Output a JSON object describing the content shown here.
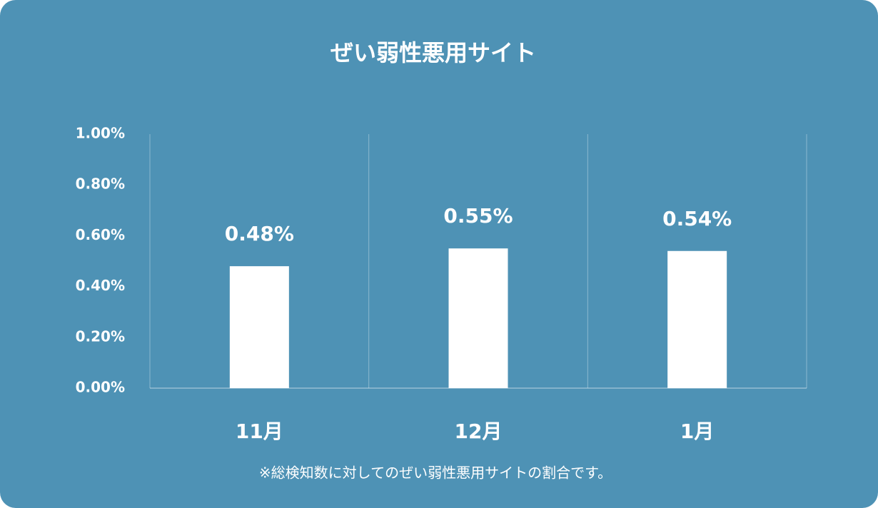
{
  "chart_data": {
    "type": "bar",
    "title": "ぜい弱性悪用サイト",
    "categories": [
      "11月",
      "12月",
      "1月"
    ],
    "values": [
      0.48,
      0.55,
      0.54
    ],
    "value_labels": [
      "0.48%",
      "0.55%",
      "0.54%"
    ],
    "color": "#ffffff",
    "ylim": [
      0,
      1
    ],
    "yticks": [
      {
        "value": 0,
        "label": "0.00%"
      },
      {
        "value": 0.2,
        "label": "0.20%"
      },
      {
        "value": 0.4,
        "label": "0.40%"
      },
      {
        "value": 0.6,
        "label": "0.60%"
      },
      {
        "value": 0.8,
        "label": "0.80%"
      },
      {
        "value": 1,
        "label": "1.00%"
      }
    ],
    "grid": false,
    "footnote": "※総検知数に対してのぜい弱性悪用サイトの割合です。"
  }
}
